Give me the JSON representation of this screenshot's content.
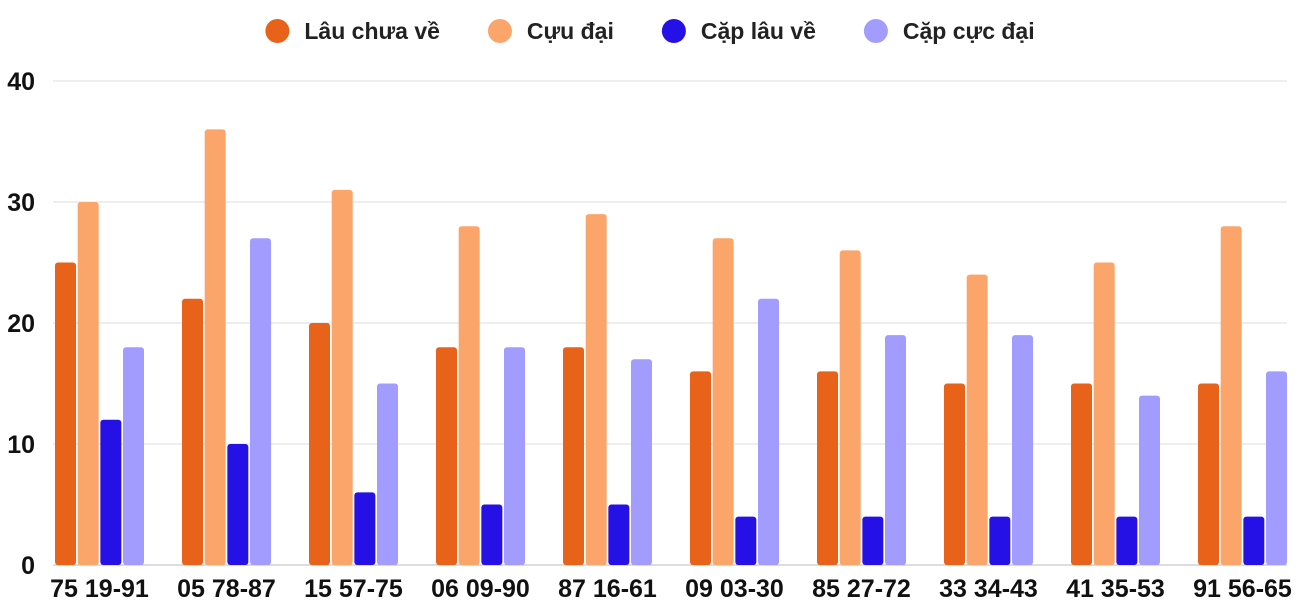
{
  "chart_data": {
    "type": "bar",
    "title": "",
    "xlabel": "",
    "ylabel": "",
    "ylim": [
      0,
      40
    ],
    "yticks": [
      0,
      10,
      20,
      30,
      40
    ],
    "grid": true,
    "legend_position": "top-center",
    "categories": [
      "75 19-91",
      "05 78-87",
      "15 57-75",
      "06 09-90",
      "87 16-61",
      "09 03-30",
      "85 27-72",
      "33 34-43",
      "41 35-53",
      "91 56-65"
    ],
    "series": [
      {
        "name": "Lâu chưa về",
        "color": "#e8621a",
        "values": [
          25,
          22,
          20,
          18,
          18,
          16,
          16,
          15,
          15,
          15
        ]
      },
      {
        "name": "Cựu đại",
        "color": "#fca56b",
        "values": [
          30,
          36,
          31,
          28,
          29,
          27,
          26,
          24,
          25,
          28
        ]
      },
      {
        "name": "Cặp lâu về",
        "color": "#2511e6",
        "values": [
          12,
          10,
          6,
          5,
          5,
          4,
          4,
          4,
          4,
          4
        ]
      },
      {
        "name": "Cặp cực đại",
        "color": "#a29cff",
        "values": [
          18,
          27,
          15,
          18,
          17,
          22,
          19,
          19,
          14,
          16
        ]
      }
    ]
  }
}
